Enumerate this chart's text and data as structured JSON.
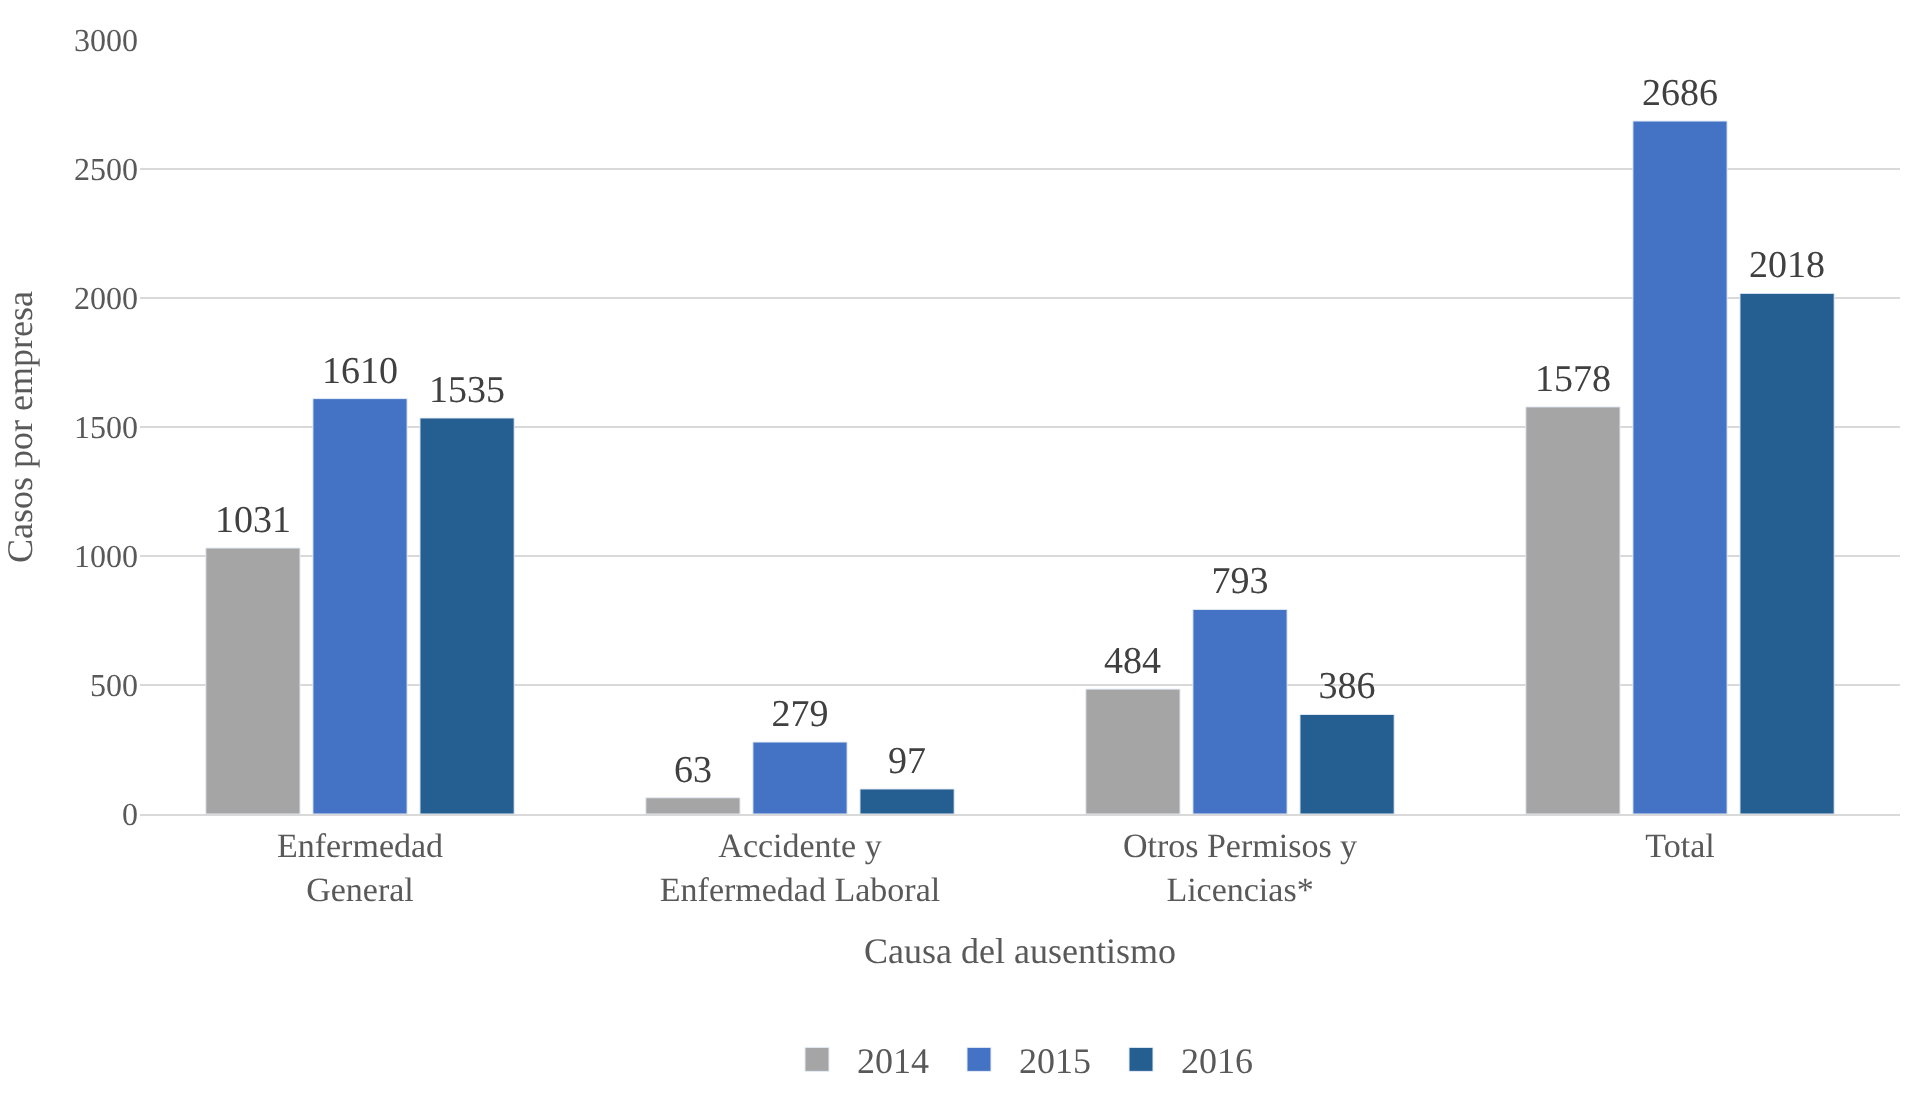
{
  "chart_data": {
    "type": "bar",
    "xlabel": "Causa del ausentismo",
    "ylabel": "Casos por empresa",
    "categories": [
      "Enfermedad\nGeneral",
      "Accidente y\nEnfermedad Laboral",
      "Otros Permisos y\nLicencias*",
      "Total"
    ],
    "series": [
      {
        "name": "2014",
        "color": "#a5a5a5",
        "values": [
          1031,
          63,
          484,
          1578
        ]
      },
      {
        "name": "2015",
        "color": "#4472c4",
        "values": [
          1610,
          279,
          793,
          2686
        ]
      },
      {
        "name": "2016",
        "color": "#255e91",
        "values": [
          1535,
          97,
          386,
          2018
        ]
      }
    ],
    "ylim": [
      0,
      3000
    ],
    "yticks": [
      0,
      500,
      1000,
      1500,
      2000,
      2500,
      3000
    ],
    "grid": "y",
    "legend": "bottom",
    "data_labels": true
  }
}
